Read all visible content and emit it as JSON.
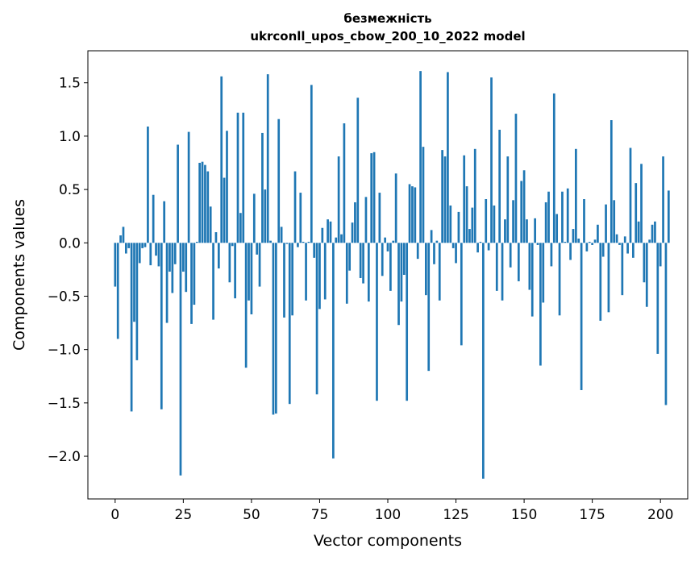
{
  "chart_data": {
    "type": "bar",
    "title": "безмежність",
    "subtitle": "ukrconll_upos_cbow_200_10_2022 model",
    "xlabel": "Vector components",
    "ylabel": "Components values",
    "xlim": [
      -10,
      210
    ],
    "ylim": [
      -2.4,
      1.8
    ],
    "xticks": [
      0,
      25,
      50,
      75,
      100,
      125,
      150,
      175,
      200
    ],
    "yticks": [
      -2.0,
      -1.5,
      -1.0,
      -0.5,
      0.0,
      0.5,
      1.0,
      1.5
    ],
    "xtick_labels": [
      "0",
      "25",
      "50",
      "75",
      "100",
      "125",
      "150",
      "175",
      "200"
    ],
    "ytick_labels": [
      "−2.0",
      "−1.5",
      "−1.0",
      "−0.5",
      "0.0",
      "0.5",
      "1.0",
      "1.5"
    ],
    "bar_color": "#1f77b4",
    "grid": false,
    "values": [
      -0.41,
      -0.9,
      0.07,
      0.15,
      -0.1,
      -0.05,
      -1.58,
      -0.74,
      -1.1,
      -0.19,
      -0.05,
      -0.04,
      1.09,
      -0.21,
      0.45,
      -0.12,
      -0.22,
      -1.56,
      0.39,
      -0.75,
      -0.27,
      -0.47,
      -0.2,
      0.92,
      -2.18,
      -0.27,
      -0.46,
      1.04,
      -0.76,
      -0.58,
      0.01,
      0.75,
      0.76,
      0.73,
      0.67,
      0.34,
      -0.72,
      0.1,
      -0.24,
      1.56,
      0.61,
      1.05,
      -0.37,
      -0.03,
      -0.52,
      1.22,
      0.28,
      1.22,
      -1.17,
      -0.54,
      -0.67,
      0.46,
      -0.11,
      -0.41,
      1.03,
      0.5,
      1.58,
      0.02,
      -1.61,
      -1.6,
      1.16,
      0.15,
      -0.7,
      -0.01,
      -1.51,
      -0.68,
      0.67,
      -0.04,
      0.47,
      0.01,
      -0.54,
      0.01,
      1.48,
      -0.14,
      -1.42,
      -0.62,
      0.14,
      -0.53,
      0.22,
      0.2,
      -2.02,
      0.05,
      0.81,
      0.08,
      1.12,
      -0.57,
      -0.26,
      0.19,
      0.38,
      1.36,
      -0.33,
      -0.38,
      0.43,
      -0.55,
      0.84,
      0.85,
      -1.48,
      0.47,
      -0.31,
      0.05,
      -0.08,
      -0.45,
      0.02,
      0.65,
      -0.77,
      -0.55,
      -0.3,
      -1.48,
      0.55,
      0.53,
      0.52,
      -0.15,
      1.61,
      0.9,
      -0.49,
      -1.2,
      0.12,
      -0.2,
      0.02,
      -0.54,
      0.87,
      0.81,
      1.6,
      0.35,
      -0.05,
      -0.19,
      0.29,
      -0.96,
      0.82,
      0.53,
      0.13,
      0.33,
      0.88,
      -0.09,
      0.01,
      -2.21,
      0.41,
      -0.07,
      1.55,
      0.35,
      -0.45,
      1.06,
      -0.54,
      0.22,
      0.81,
      -0.23,
      0.4,
      1.21,
      -0.36,
      0.58,
      0.68,
      0.22,
      -0.44,
      -0.69,
      0.23,
      -0.02,
      -1.15,
      -0.56,
      0.38,
      0.48,
      -0.22,
      1.4,
      0.27,
      -0.68,
      0.48,
      0.01,
      0.51,
      -0.16,
      0.13,
      0.88,
      0.04,
      -1.38,
      0.41,
      -0.08,
      0.01,
      -0.02,
      0.03,
      0.17,
      -0.73,
      -0.13,
      0.36,
      -0.65,
      1.15,
      0.4,
      0.08,
      -0.02,
      -0.49,
      0.06,
      -0.1,
      0.89,
      -0.14,
      0.56,
      0.2,
      0.74,
      -0.37,
      -0.6,
      0.03,
      0.17,
      0.2,
      -1.04,
      -0.22,
      0.81,
      -1.52,
      0.49
    ]
  }
}
